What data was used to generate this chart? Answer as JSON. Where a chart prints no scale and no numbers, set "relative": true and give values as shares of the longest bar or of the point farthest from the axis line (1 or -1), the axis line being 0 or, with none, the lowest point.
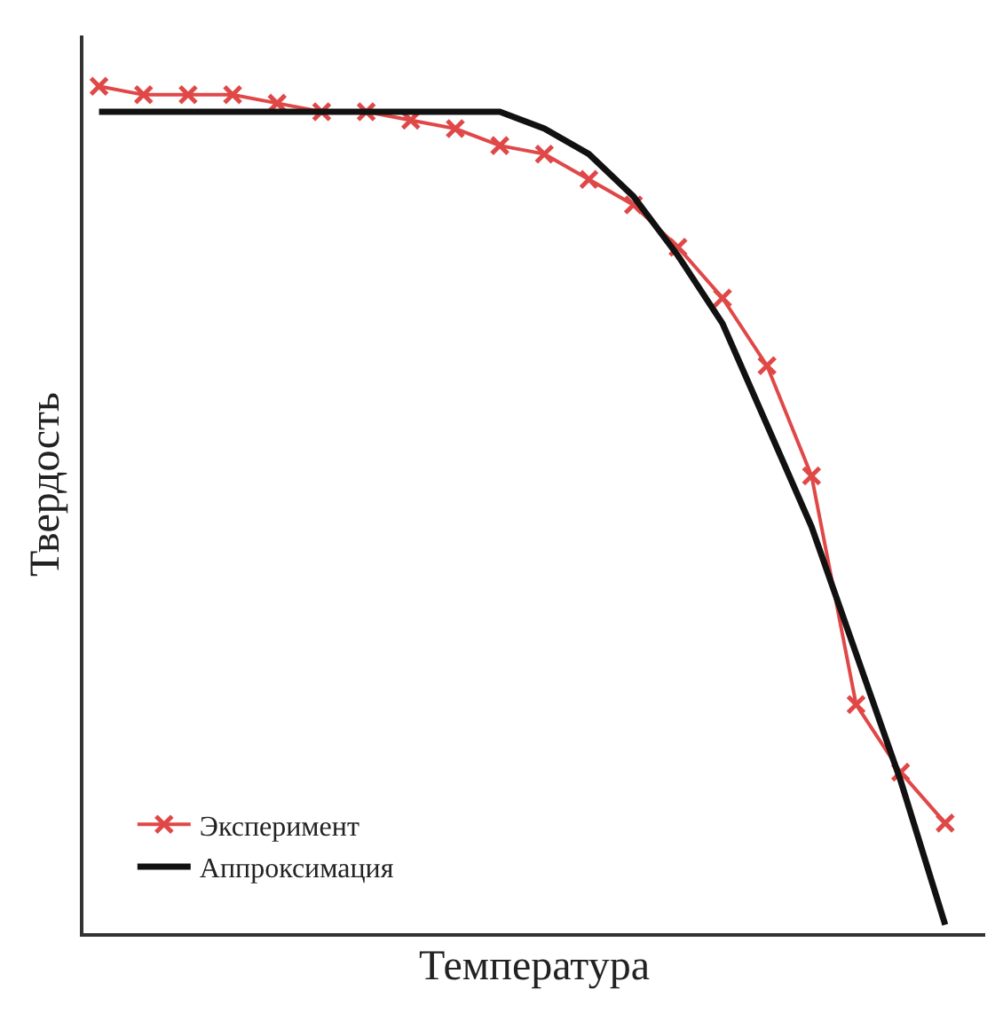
{
  "chart_data": {
    "type": "line",
    "relative": true,
    "xlabel": "Температура",
    "ylabel": "Твердость",
    "categories": [
      null,
      null,
      null,
      null,
      null,
      null,
      null,
      null,
      null,
      null,
      null,
      null,
      null,
      null,
      null,
      null,
      null,
      null,
      null,
      null
    ],
    "series": [
      {
        "name": "Эксперимент",
        "marker": "cross",
        "color": "#e04848",
        "values": [
          1.0,
          0.99,
          0.99,
          0.99,
          0.98,
          0.97,
          0.97,
          0.96,
          0.95,
          0.93,
          0.92,
          0.89,
          0.86,
          0.81,
          0.75,
          0.67,
          0.54,
          0.27,
          0.19,
          0.13
        ]
      },
      {
        "name": "Аппроксимация",
        "marker": "none",
        "color": "#111111",
        "values": [
          0.97,
          0.97,
          0.97,
          0.97,
          0.97,
          0.97,
          0.97,
          0.97,
          0.97,
          0.97,
          0.95,
          0.92,
          0.87,
          0.8,
          0.72,
          0.6,
          0.48,
          0.33,
          0.18,
          0.01
        ]
      }
    ],
    "line_style": "solid",
    "grid": false,
    "legend": "bottom left"
  }
}
